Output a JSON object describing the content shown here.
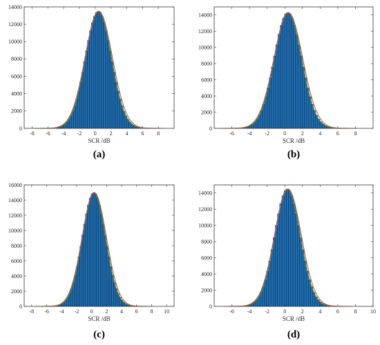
{
  "colors": {
    "bar_fill": "#1f6fb5",
    "bar_edge": "#0b2236",
    "fit_curve_red": "#d2553f",
    "fit_curve_green": "#2e8b3a",
    "axis": "#333333"
  },
  "chart_data": [
    {
      "type": "bar",
      "caption": "(a)",
      "xlabel": "SCR /dB",
      "ylabel": "",
      "xlim": [
        -9,
        10
      ],
      "ylim": [
        0,
        14000
      ],
      "xticks": [
        -8,
        -6,
        -4,
        -2,
        0,
        2,
        4,
        6,
        8
      ],
      "yticks": [
        0,
        2000,
        4000,
        6000,
        8000,
        10000,
        12000,
        14000
      ],
      "peak": 13500,
      "mean": 0.4,
      "sigma": 1.65,
      "bin_width": 0.25,
      "grid": false,
      "legend": "none"
    },
    {
      "type": "bar",
      "caption": "(b)",
      "xlabel": "SCR /dB",
      "ylabel": "",
      "xlim": [
        -8,
        10
      ],
      "ylim": [
        0,
        15000
      ],
      "xticks": [
        -6,
        -4,
        -2,
        0,
        2,
        4,
        6,
        8
      ],
      "yticks": [
        0,
        2000,
        4000,
        6000,
        8000,
        10000,
        12000,
        14000
      ],
      "peak": 14300,
      "mean": 0.35,
      "sigma": 1.55,
      "bin_width": 0.25,
      "grid": false,
      "legend": "none"
    },
    {
      "type": "bar",
      "caption": "(c)",
      "xlabel": "SCR /dB",
      "ylabel": "",
      "xlim": [
        -9,
        11
      ],
      "ylim": [
        0,
        16000
      ],
      "xticks": [
        -8,
        -6,
        -4,
        -2,
        0,
        2,
        4,
        6,
        8,
        10
      ],
      "yticks": [
        0,
        2000,
        4000,
        6000,
        8000,
        10000,
        12000,
        14000,
        16000
      ],
      "peak": 15000,
      "mean": 0.3,
      "sigma": 1.55,
      "bin_width": 0.25,
      "grid": false,
      "legend": "none"
    },
    {
      "type": "bar",
      "caption": "(d)",
      "xlabel": "SCR /dB",
      "ylabel": "",
      "xlim": [
        -8,
        10
      ],
      "ylim": [
        0,
        15000
      ],
      "xticks": [
        -6,
        -4,
        -2,
        0,
        2,
        4,
        6,
        8,
        10
      ],
      "yticks": [
        0,
        2000,
        4000,
        6000,
        8000,
        10000,
        12000,
        14000
      ],
      "peak": 14500,
      "mean": 0.3,
      "sigma": 1.45,
      "bin_width": 0.25,
      "grid": false,
      "legend": "none"
    }
  ]
}
